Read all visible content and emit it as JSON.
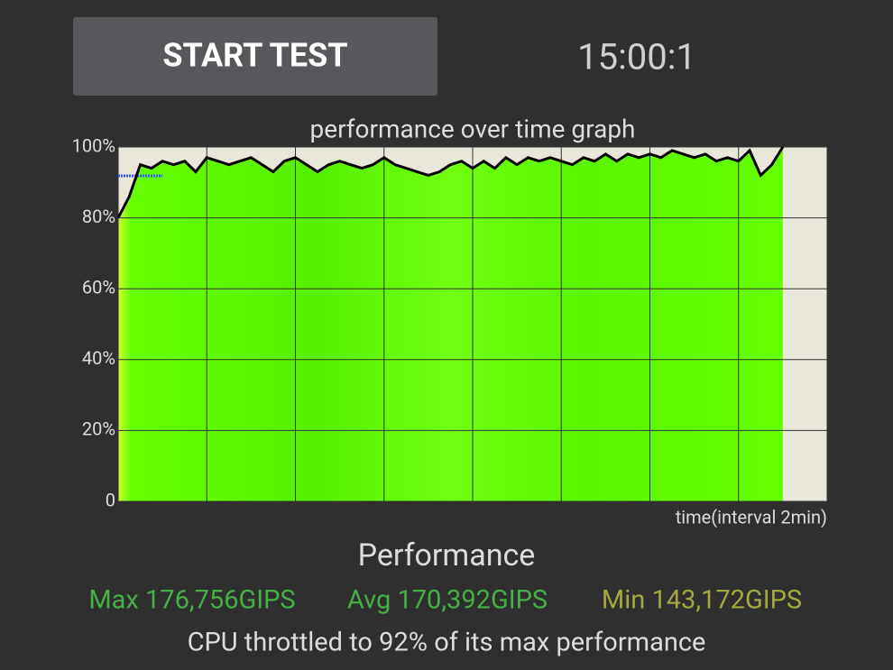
{
  "button": "START TEST",
  "timer": "15:00:1",
  "chart_data": {
    "type": "area",
    "title": "performance over time graph",
    "x_label": "time(interval 2min)",
    "x": [
      0,
      0.25,
      0.5,
      0.75,
      1,
      1.25,
      1.5,
      1.75,
      2,
      2.25,
      2.5,
      2.75,
      3,
      3.25,
      3.5,
      3.75,
      4,
      4.25,
      4.5,
      4.75,
      5,
      5.25,
      5.5,
      5.75,
      6,
      6.25,
      6.5,
      6.75,
      7,
      7.25,
      7.5,
      7.75,
      8,
      8.25,
      8.5,
      8.75,
      9,
      9.25,
      9.5,
      9.75,
      10,
      10.25,
      10.5,
      10.75,
      11,
      11.25,
      11.5,
      11.75,
      12,
      12.25,
      12.5,
      12.75,
      13,
      13.25,
      13.5,
      13.75,
      14,
      14.25,
      14.5,
      14.75,
      15
    ],
    "values": [
      80,
      86,
      95,
      94,
      96,
      95,
      96,
      93,
      97,
      96,
      95,
      96,
      97,
      95,
      93,
      96,
      97,
      95,
      93,
      95,
      96,
      95,
      94,
      95,
      97,
      95,
      94,
      93,
      92,
      93,
      95,
      96,
      94,
      96,
      94,
      97,
      95,
      97,
      96,
      97,
      96,
      95,
      97,
      96,
      98,
      96,
      98,
      97,
      98,
      97,
      99,
      98,
      97,
      98,
      96,
      97,
      96,
      99,
      92,
      95,
      100
    ],
    "xlim": [
      0,
      16
    ],
    "xticks": [
      0,
      2,
      4,
      6,
      8,
      10,
      12,
      14,
      16
    ],
    "ylim": [
      0,
      100
    ],
    "yticks": [
      0,
      {
        "value": 20,
        "label": "20%"
      },
      {
        "value": 40,
        "label": "40%"
      },
      {
        "value": 60,
        "label": "60%"
      },
      {
        "value": 80,
        "label": "80%"
      },
      {
        "value": 100,
        "label": "100%"
      }
    ],
    "grid": true,
    "color": "#66ff00",
    "line_color": "#000000"
  },
  "summary": {
    "heading": "Performance",
    "max": "Max 176,756GIPS",
    "avg": "Avg 170,392GIPS",
    "min": "Min 143,172GIPS",
    "message": "CPU throttled to 92% of its max performance"
  }
}
